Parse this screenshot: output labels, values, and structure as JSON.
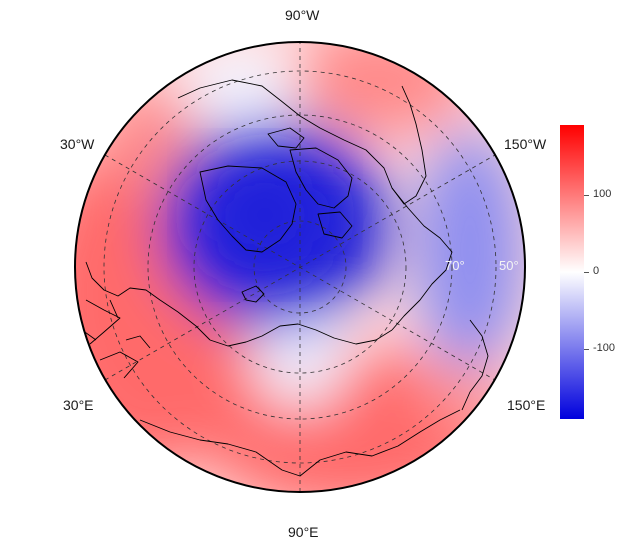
{
  "map": {
    "projection": "north polar stereographic",
    "longitude_labels": {
      "top": "90°W",
      "bottom": "90°E",
      "upper_left": "30°W",
      "upper_right": "150°W",
      "lower_left": "30°E",
      "lower_right": "150°E"
    },
    "latitude_labels": [
      "70°",
      "50°"
    ],
    "field_colors": {
      "low": "#0000dd",
      "mid": "#ffffff",
      "high": "#ff0000"
    }
  },
  "colorbar": {
    "min": -190,
    "max": 190,
    "tick_labels": [
      "100",
      "0",
      "-100"
    ],
    "tick_values": [
      100,
      0,
      -100
    ]
  }
}
